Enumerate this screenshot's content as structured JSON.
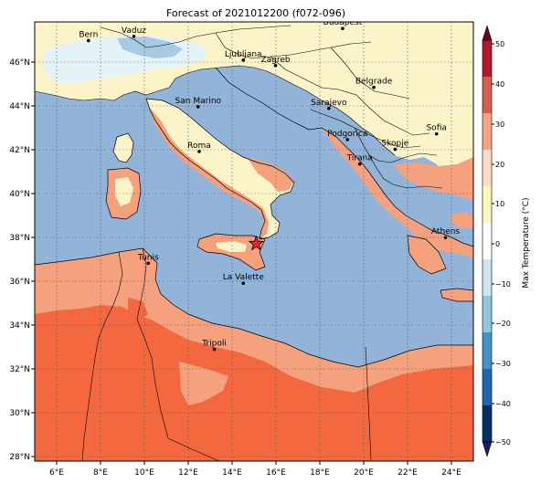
{
  "title": "Forecast of 2021012200 (f072-096)",
  "colorbar": {
    "label": "Max Temperature (°C)",
    "ticks": [
      "50",
      "40",
      "30",
      "20",
      "10",
      "0",
      "−10",
      "−20",
      "−30",
      "−40",
      "−50"
    ],
    "bins": [
      "#67001f",
      "#b2182b",
      "#d6604d",
      "#f4a582",
      "#fddbc7",
      "#fff7bc",
      "#ffffff",
      "#d1e5f0",
      "#92c5de",
      "#4393c3",
      "#2166ac",
      "#053061",
      "#1a1a6e"
    ]
  },
  "map": {
    "lon_ticks": [
      "6°E",
      "8°E",
      "10°E",
      "12°E",
      "14°E",
      "16°E",
      "18°E",
      "20°E",
      "22°E",
      "24°E"
    ],
    "lat_ticks": [
      "46°N",
      "44°N",
      "42°N",
      "40°N",
      "38°N",
      "36°N",
      "34°N",
      "32°N",
      "30°N",
      "28°N"
    ],
    "colors": {
      "sea": "#92b4d8",
      "north": "#fcf3c8",
      "coast": "#f6a17e",
      "south": "#f4683f",
      "alps": "#e3f3f8",
      "alps_cold": "#a8cbe3"
    },
    "marker": {
      "symbol": "star",
      "color": "#e8262a",
      "lon": 15.1,
      "lat": 37.7
    }
  },
  "cities": [
    {
      "name": "Bern",
      "lon": 7.45,
      "lat": 46.95
    },
    {
      "name": "Vaduz",
      "lon": 9.52,
      "lat": 47.14
    },
    {
      "name": "Budapest",
      "lon": 19.04,
      "lat": 47.5
    },
    {
      "name": "Ljubljana",
      "lon": 14.51,
      "lat": 46.06
    },
    {
      "name": "Zagreb",
      "lon": 15.98,
      "lat": 45.81
    },
    {
      "name": "Belgrade",
      "lon": 20.46,
      "lat": 44.82
    },
    {
      "name": "San Marino",
      "lon": 12.45,
      "lat": 43.94
    },
    {
      "name": "Sarajevo",
      "lon": 18.41,
      "lat": 43.86
    },
    {
      "name": "Sofia",
      "lon": 23.32,
      "lat": 42.7
    },
    {
      "name": "Podgorica",
      "lon": 19.26,
      "lat": 42.44
    },
    {
      "name": "Skopje",
      "lon": 21.43,
      "lat": 42.0
    },
    {
      "name": "Roma",
      "lon": 12.5,
      "lat": 41.9
    },
    {
      "name": "Tirana",
      "lon": 19.82,
      "lat": 41.33
    },
    {
      "name": "Athens",
      "lon": 23.73,
      "lat": 37.98
    },
    {
      "name": "Tunis",
      "lon": 10.18,
      "lat": 36.81
    },
    {
      "name": "La Valette",
      "lon": 14.51,
      "lat": 35.9
    },
    {
      "name": "Tripoli",
      "lon": 13.19,
      "lat": 32.89
    }
  ]
}
